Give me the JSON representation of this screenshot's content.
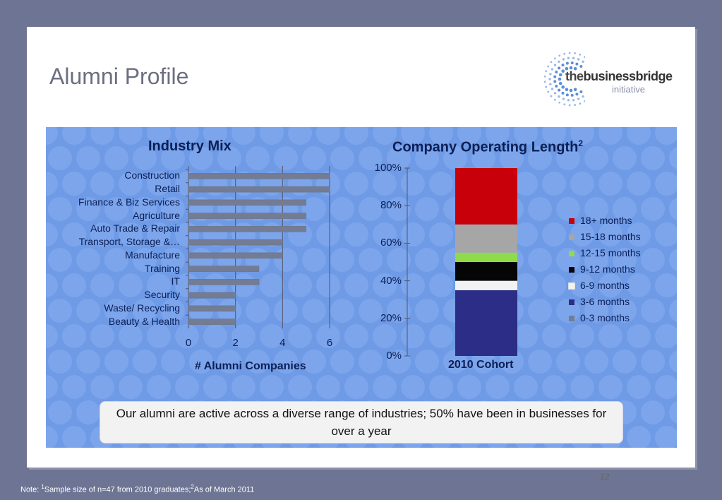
{
  "slide": {
    "title": "Alumni Profile",
    "page_number": "12",
    "callout": "Our alumni are active across a diverse range of industries; 50% have been in businesses for over a year",
    "note_prefix": "Note: ",
    "note_sup1": "1",
    "note_text1": "Sample size of n=47 from 2010 graduates;",
    "note_sup2": "2",
    "note_text2": "As of March 2011"
  },
  "logo": {
    "word_the": "the",
    "word_brand": "businessbridge",
    "tagline": "initiative"
  },
  "colors": {
    "panel_bg": "#6f9be6",
    "bar": "#737c93"
  },
  "chart_data": [
    {
      "type": "bar",
      "orientation": "horizontal",
      "title": "Industry Mix",
      "xlabel": "# Alumni Companies",
      "xlim": [
        0,
        6
      ],
      "xticks": [
        0,
        2,
        4,
        6
      ],
      "grid": true,
      "categories": [
        "Construction",
        "Retail",
        "Finance & Biz Services",
        "Agriculture",
        "Auto Trade & Repair",
        "Transport, Storage &…",
        "Manufacture",
        "Training",
        "IT",
        "Security",
        "Waste/ Recycling",
        "Beauty & Health"
      ],
      "values": [
        6,
        6,
        5,
        5,
        5,
        4,
        4,
        3,
        3,
        2,
        2,
        2
      ]
    },
    {
      "type": "bar",
      "stacked": true,
      "title": "Company Operating Length",
      "title_sup": "2",
      "categories": [
        "2010 Cohort"
      ],
      "ylim": [
        0,
        100
      ],
      "yticks": [
        "0%",
        "20%",
        "40%",
        "60%",
        "80%",
        "100%"
      ],
      "legend_placement": "right",
      "series": [
        {
          "name": "0-3 months",
          "value": 0,
          "color": "#737c93"
        },
        {
          "name": "3-6 months",
          "value": 35,
          "color": "#2b2d86"
        },
        {
          "name": "6-9 months",
          "value": 5,
          "color": "#f2f2f2"
        },
        {
          "name": "9-12 months",
          "value": 10,
          "color": "#050505"
        },
        {
          "name": "12-15 months",
          "value": 5,
          "color": "#8fdb4a"
        },
        {
          "name": "15-18 months",
          "value": 15,
          "color": "#a6a6a6"
        },
        {
          "name": "18+ months",
          "value": 30,
          "color": "#c8000a"
        }
      ],
      "legend_order": [
        "18+ months",
        "15-18 months",
        "12-15 months",
        "9-12 months",
        "6-9 months",
        "3-6 months",
        "0-3 months"
      ]
    }
  ]
}
